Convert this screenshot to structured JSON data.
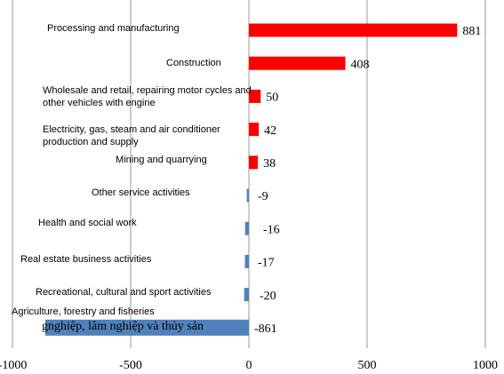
{
  "chart_data": {
    "type": "bar",
    "orientation": "horizontal",
    "categories": [
      "Processing and manufacturing",
      "Construction",
      "Wholesale and retail, repairing motor cycles and other vehicles with engine",
      "Electricity, gas, steam and air conditioner production and supply",
      "Mining and quarrying",
      "Other service activities",
      "Health and social work",
      "Real estate business activities",
      "Recreational, cultural and sport activities",
      "Agriculture, forestry and fisheries"
    ],
    "values": [
      881,
      408,
      50,
      42,
      38,
      -9,
      -16,
      -17,
      -20,
      -861
    ],
    "positive_color": "#ff0000",
    "negative_color": "#4f81bd",
    "xlim": [
      -1000,
      1000
    ],
    "xticks": [
      -1000,
      -500,
      0,
      500,
      1000
    ],
    "grid": true,
    "annotation": "gnghiệp, lâm nghiệp và thủy sản"
  }
}
